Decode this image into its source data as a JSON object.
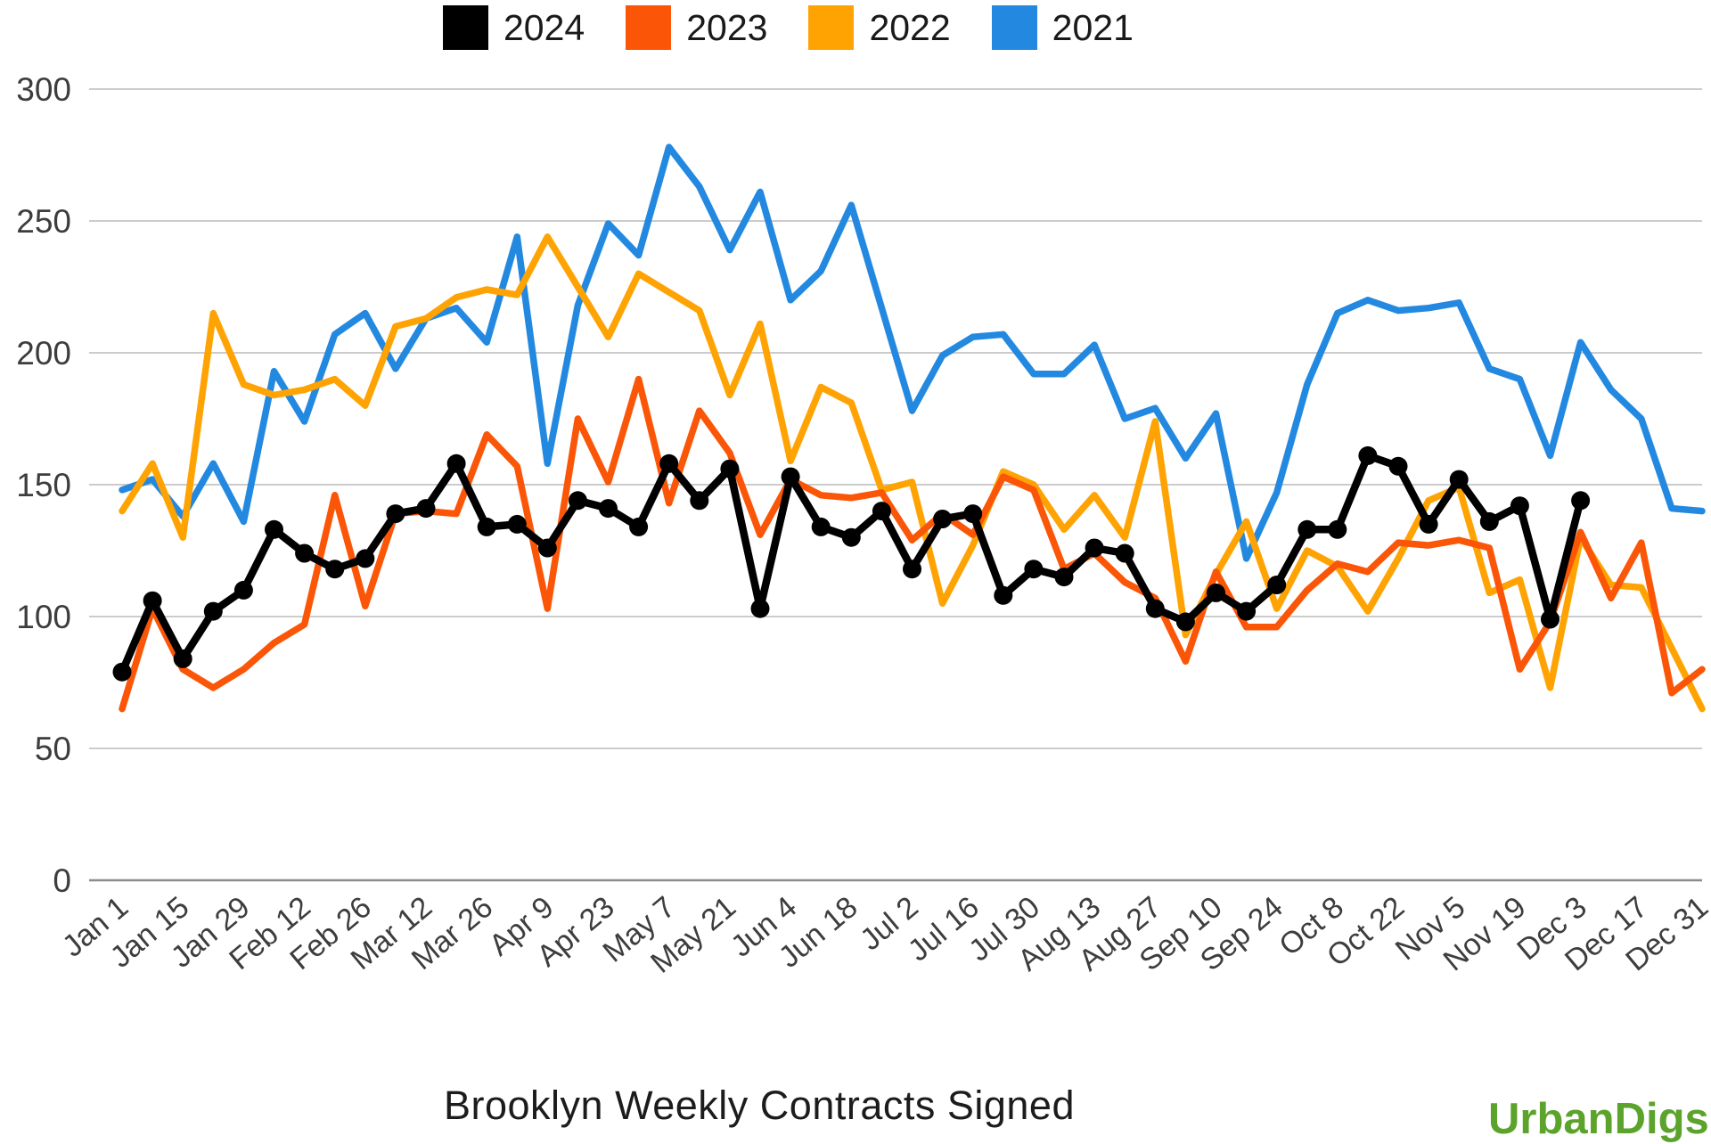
{
  "chart_data": {
    "type": "line",
    "title": "Brooklyn Weekly Contracts Signed",
    "xlabel": "",
    "ylabel": "",
    "ylim": [
      0,
      300
    ],
    "yticks": [
      0,
      50,
      100,
      150,
      200,
      250,
      300
    ],
    "grid": "horizontal",
    "gridline_color": "#cccccc",
    "axis_line_color": "#8c8c8c",
    "tick_label_color": "#3d3d3d",
    "legend_position": "top",
    "x_label_every": 2,
    "x_labels": [
      "Jan 1",
      "Jan 15",
      "Jan 29",
      "Feb 12",
      "Feb 26",
      "Mar 12",
      "Mar 26",
      "Apr 9",
      "Apr 23",
      "May 7",
      "May 21",
      "Jun 4",
      "Jun 18",
      "Jul 2",
      "Jul 16",
      "Jul 30",
      "Aug 13",
      "Aug 27",
      "Sep 10",
      "Sep 24",
      "Oct 8",
      "Oct 22",
      "Nov 5",
      "Nov 19",
      "Dec 3",
      "Dec 17",
      "Dec 31"
    ],
    "series": [
      {
        "name": "2024",
        "color": "#000000",
        "markers": true,
        "values": [
          79,
          106,
          84,
          102,
          110,
          133,
          124,
          118,
          122,
          139,
          141,
          158,
          134,
          135,
          126,
          144,
          141,
          134,
          158,
          144,
          156,
          103,
          153,
          134,
          130,
          140,
          118,
          137,
          139,
          108,
          118,
          115,
          126,
          124,
          103,
          98,
          109,
          102,
          112,
          133,
          133,
          161,
          157,
          135,
          152,
          136,
          142,
          99,
          144
        ]
      },
      {
        "name": "2023",
        "color": "#fb5607",
        "markers": false,
        "values": [
          65,
          103,
          80,
          73,
          80,
          90,
          97,
          146,
          104,
          139,
          140,
          139,
          169,
          157,
          103,
          175,
          151,
          190,
          143,
          178,
          162,
          131,
          152,
          146,
          145,
          147,
          129,
          139,
          131,
          153,
          148,
          118,
          124,
          113,
          107,
          83,
          117,
          96,
          96,
          110,
          120,
          117,
          128,
          127,
          129,
          126,
          80,
          98,
          132,
          107,
          128,
          71,
          80
        ]
      },
      {
        "name": "2022",
        "color": "#ffa303",
        "markers": false,
        "values": [
          140,
          158,
          130,
          215,
          188,
          184,
          186,
          190,
          180,
          210,
          213,
          221,
          224,
          222,
          244,
          225,
          206,
          230,
          223,
          216,
          184,
          211,
          159,
          187,
          181,
          148,
          151,
          105,
          127,
          155,
          150,
          133,
          146,
          130,
          174,
          93,
          116,
          136,
          103,
          125,
          119,
          102,
          122,
          144,
          149,
          109,
          114,
          73,
          130,
          112,
          111,
          88,
          65
        ]
      },
      {
        "name": "2021",
        "color": "#2389e0",
        "markers": false,
        "values": [
          148,
          152,
          138,
          158,
          136,
          193,
          174,
          207,
          215,
          194,
          213,
          217,
          204,
          244,
          158,
          218,
          249,
          237,
          278,
          263,
          239,
          261,
          220,
          231,
          256,
          217,
          178,
          199,
          206,
          207,
          192,
          192,
          203,
          175,
          179,
          160,
          177,
          122,
          147,
          188,
          215,
          220,
          216,
          217,
          219,
          194,
          190,
          161,
          204,
          186,
          175,
          141,
          140
        ]
      }
    ]
  },
  "branding": {
    "logo_text": "UrbanDigs"
  }
}
